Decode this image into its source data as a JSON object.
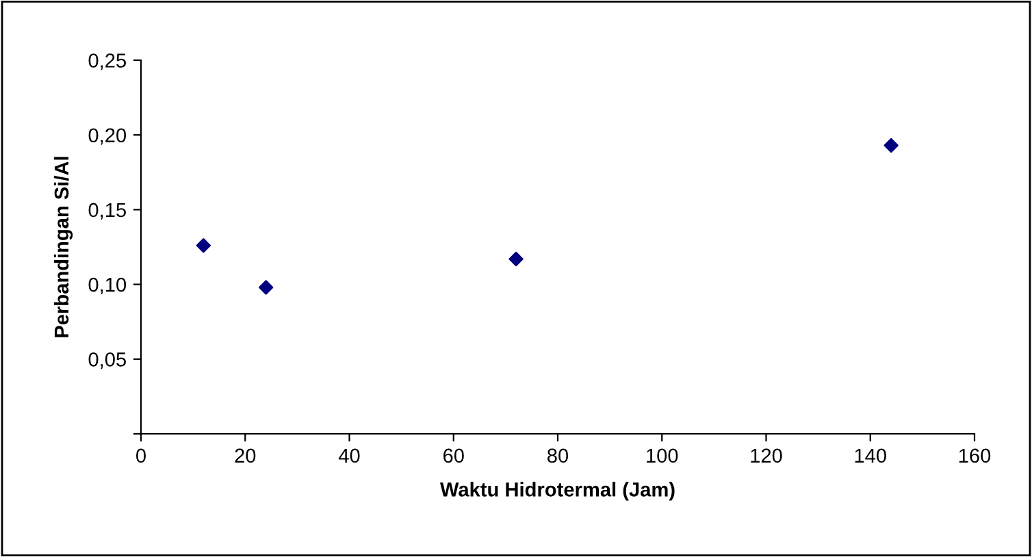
{
  "chart_data": {
    "type": "scatter",
    "xlabel": "Waktu Hidrotermal (Jam)",
    "ylabel": "Perbandingan Si/Al",
    "x": [
      12,
      24,
      72,
      144
    ],
    "values": [
      0.126,
      0.098,
      0.117,
      0.193
    ],
    "color": "#000080",
    "marker": "diamond",
    "xlim": [
      0,
      160
    ],
    "xticks": [
      0,
      20,
      40,
      60,
      80,
      100,
      120,
      140,
      160
    ],
    "ylim": [
      0,
      0.25
    ],
    "yticks": [
      {
        "value": 0,
        "label": null
      },
      {
        "value": 0.05,
        "label": "0,05"
      },
      {
        "value": 0.1,
        "label": "0,10"
      },
      {
        "value": 0.15,
        "label": "0,15"
      },
      {
        "value": 0.2,
        "label": "0,20"
      },
      {
        "value": 0.25,
        "label": "0,25"
      }
    ],
    "grid": false,
    "legend": false
  }
}
